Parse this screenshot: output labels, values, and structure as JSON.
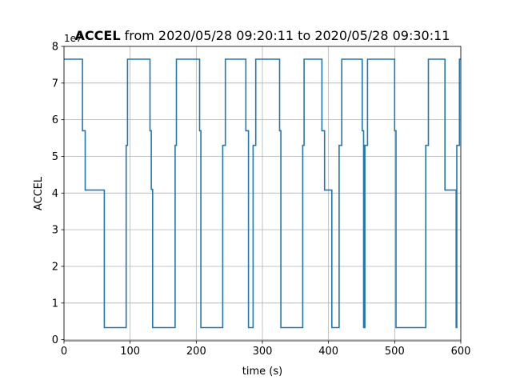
{
  "chart_data": {
    "type": "line",
    "drawstyle": "steps-post",
    "title_bold": "ACCEL",
    "title_rest": " from 2020/05/28 09:20:11 to 2020/05/28 09:30:11",
    "xlabel": "time (s)",
    "ylabel": "ACCEL",
    "y_offset_label": "1e7",
    "xlim": [
      0,
      600
    ],
    "ylim": [
      -0.03,
      8.0
    ],
    "y_scale_factor": 10000000,
    "xticks": [
      0,
      100,
      200,
      300,
      400,
      500,
      600
    ],
    "yticks": [
      0,
      1,
      2,
      3,
      4,
      5,
      6,
      7,
      8
    ],
    "grid": true,
    "series_color": "#1f77b4",
    "series": [
      {
        "x": [
          0,
          28,
          30,
          32,
          61,
          94,
          96,
          130,
          132,
          134,
          168,
          170,
          205,
          207,
          240,
          242,
          244,
          275,
          277,
          279,
          286,
          288,
          290,
          326,
          328,
          361,
          363,
          390,
          392,
          394,
          405,
          407,
          416,
          418,
          420,
          451,
          453,
          455,
          457,
          459,
          500,
          502,
          547,
          549,
          551,
          576,
          578,
          592,
          593,
          594,
          596,
          598,
          600
        ],
        "y": [
          7.65,
          5.7,
          5.7,
          4.08,
          0.33,
          5.3,
          7.65,
          5.7,
          4.1,
          0.33,
          5.3,
          7.65,
          5.7,
          0.33,
          5.3,
          5.3,
          7.65,
          5.7,
          5.7,
          0.33,
          5.3,
          5.3,
          7.65,
          5.7,
          0.33,
          5.3,
          7.65,
          5.7,
          5.7,
          4.08,
          0.33,
          0.33,
          5.3,
          5.3,
          7.65,
          5.7,
          0.33,
          5.3,
          5.3,
          7.65,
          5.7,
          0.33,
          5.3,
          5.3,
          7.65,
          4.08,
          4.08,
          4.08,
          0.33,
          5.3,
          5.3,
          7.65,
          7.65
        ]
      }
    ]
  }
}
